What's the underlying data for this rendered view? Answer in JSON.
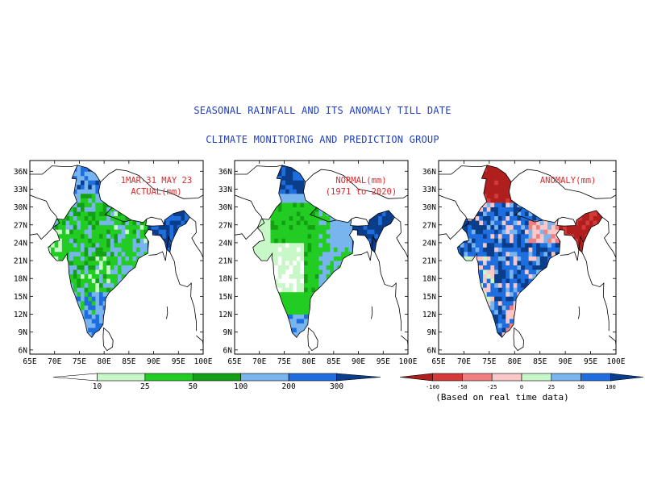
{
  "title": "SEASONAL RAINFALL AND ITS ANOMALY TILL DATE",
  "subtitle": "CLIMATE MONITORING AND PREDICTION GROUP",
  "lat_ticks": [
    "36N",
    "33N",
    "30N",
    "27N",
    "24N",
    "21N",
    "18N",
    "15N",
    "12N",
    "9N",
    "6N"
  ],
  "lon_ticks": [
    "65E",
    "70E",
    "75E",
    "80E",
    "85E",
    "90E",
    "95E",
    "100E"
  ],
  "panels": [
    {
      "id": "actual",
      "label_lines": [
        "1MAR-31 MAY 23",
        "ACTUAL(mm)"
      ],
      "scheme": "actual"
    },
    {
      "id": "normal",
      "label_lines": [
        "NORMAL(mm)",
        "(1971 to 2020)"
      ],
      "scheme": "normal"
    },
    {
      "id": "anomaly",
      "label_lines": [
        "ANOMALY(mm)"
      ],
      "scheme": "anomaly"
    }
  ],
  "colorbar_rain": {
    "labels": [
      "10",
      "25",
      "50",
      "100",
      "200",
      "300"
    ],
    "colors": [
      "#ffffff",
      "#c8f7c8",
      "#22cc22",
      "#14a014",
      "#78b4ee",
      "#1f6ee0",
      "#0a3d8a"
    ]
  },
  "colorbar_anomaly": {
    "labels": [
      "-100",
      "-50",
      "-25",
      "0",
      "25",
      "50",
      "100"
    ],
    "colors": [
      "#b01e1e",
      "#d43a3a",
      "#f08080",
      "#fac8c8",
      "#c8f7c8",
      "#78b4ee",
      "#1f6ee0",
      "#0a3d8a"
    ],
    "note": "(Based on real time data)"
  },
  "palette": {
    "title_blue": "#1f3fbf",
    "label_red": "#e0262b"
  }
}
